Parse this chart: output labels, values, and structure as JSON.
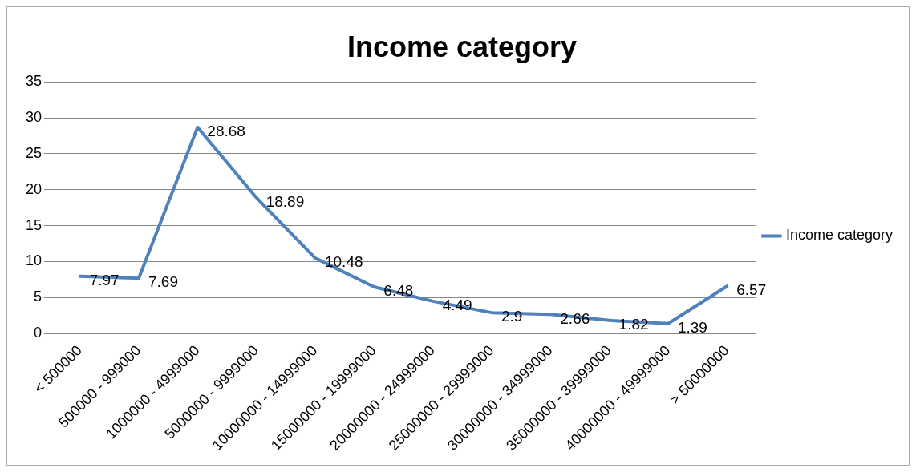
{
  "chart_data": {
    "type": "line",
    "title": "Income category",
    "categories": [
      "< 500000",
      "500000 - 999000",
      "1000000 - 4999000",
      "5000000 - 9999000",
      "10000000 - 14999000",
      "15000000 - 19999000",
      "20000000 - 24999000",
      "25000000 - 29999000",
      "30000000 - 34999000",
      "35000000 - 39999000",
      "40000000 - 49999000",
      "> 50000000"
    ],
    "series": [
      {
        "name": "Income category",
        "color": "#4f81bd",
        "values": [
          7.97,
          7.69,
          28.68,
          18.89,
          10.48,
          6.48,
          4.49,
          2.9,
          2.66,
          1.82,
          1.39,
          6.57
        ]
      }
    ],
    "ylim": [
      0,
      35
    ],
    "yticks": [
      0,
      5,
      10,
      15,
      20,
      25,
      30,
      35
    ],
    "grid": "y",
    "legend": "right",
    "marker": "none",
    "line_style": "solid",
    "data_labels": true
  }
}
